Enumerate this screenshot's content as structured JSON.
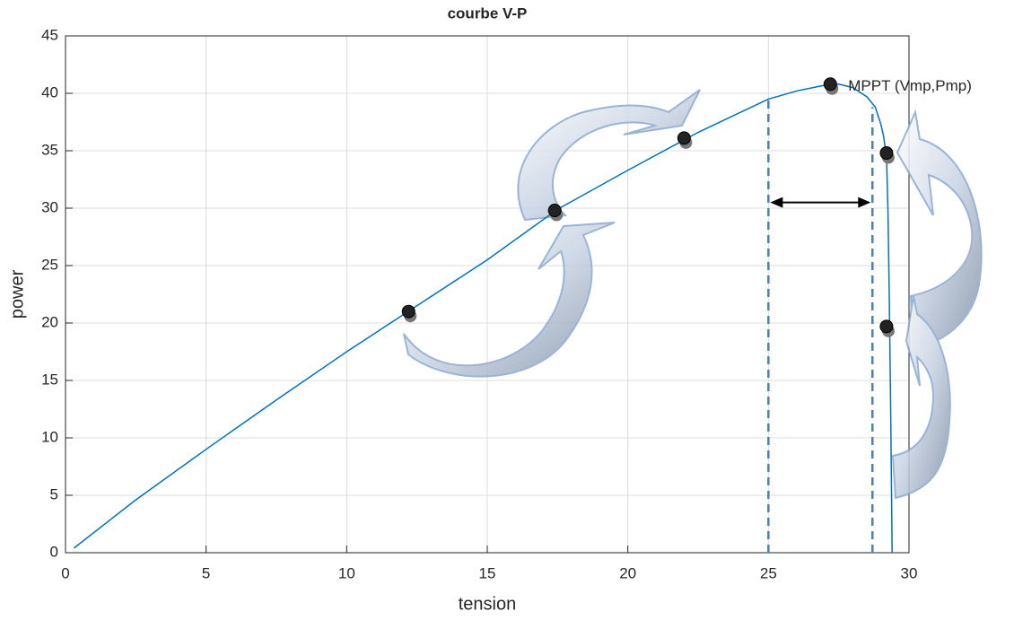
{
  "chart_data": {
    "type": "line",
    "title": "courbe V-P",
    "x_label": "tension",
    "y_label": "power",
    "x": [
      0.3,
      2.5,
      5,
      7.5,
      10,
      12.5,
      15,
      17.5,
      20,
      22.5,
      25,
      26,
      27,
      27.5,
      28,
      28.5,
      28.8,
      29,
      29.1,
      29.2,
      29.25,
      29.3,
      29.35,
      29.4
    ],
    "values": [
      0.4,
      4.6,
      9,
      13.3,
      17.5,
      21.5,
      25.5,
      29.9,
      33.3,
      36.6,
      39.5,
      40.2,
      40.7,
      40.8,
      40.5,
      39.7,
      38.8,
      37.3,
      36.2,
      34.5,
      30,
      22,
      12,
      0
    ],
    "color": "#0072bd",
    "markers": {
      "x": [
        12.2,
        17.4,
        22,
        27.2,
        29.2,
        29.2
      ],
      "values": [
        21,
        29.8,
        36.1,
        40.8,
        34.8,
        19.7
      ]
    },
    "vlines": {
      "x": [
        25,
        28.7
      ],
      "top": [
        39.8,
        38.8
      ],
      "color": "#4a7fc0"
    },
    "range_arrow": {
      "x": [
        25,
        28.7
      ],
      "y": 30.5
    },
    "annotation": "MPPT (Vmp,Pmp)",
    "xlim": [
      0,
      30
    ],
    "xticks": [
      0,
      5,
      10,
      15,
      20,
      25,
      30
    ],
    "ylim": [
      0,
      45
    ],
    "yticks": [
      0,
      5,
      10,
      15,
      20,
      25,
      30,
      35,
      40,
      45
    ],
    "grid": true
  }
}
